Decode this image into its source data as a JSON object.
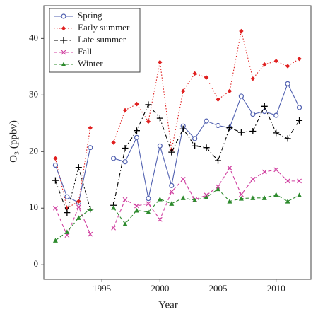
{
  "chart_data": {
    "type": "line",
    "x_label": "Year",
    "y_label": "O₃ (ppbv)",
    "x": [
      1991,
      1992,
      1993,
      1994,
      1995,
      1996,
      1997,
      1998,
      1999,
      2000,
      2001,
      2002,
      2003,
      2004,
      2005,
      2006,
      2007,
      2008,
      2009,
      2010,
      2011,
      2012
    ],
    "series": [
      {
        "name": "Spring",
        "color": "#5060b0",
        "marker": "circle",
        "linestyle": "solid",
        "values": [
          17.6,
          12,
          11,
          20.7,
          null,
          18.8,
          18.2,
          22.5,
          11.7,
          21,
          14,
          24.5,
          22.3,
          25.4,
          24.6,
          24.2,
          29.8,
          26.6,
          27.1,
          26.4,
          32,
          27.8
        ]
      },
      {
        "name": "Early summer",
        "color": "#e02020",
        "marker": "diamond",
        "linestyle": "dotted",
        "values": [
          18.8,
          10,
          11.2,
          24.2,
          null,
          21.6,
          27.3,
          28.4,
          25.3,
          35.8,
          20.3,
          30.7,
          33.8,
          33.1,
          29.2,
          30.7,
          41.3,
          32.9,
          35.4,
          36,
          35.1,
          36.4
        ]
      },
      {
        "name": "Late summer",
        "color": "#000000",
        "marker": "plus",
        "linestyle": "dashdot",
        "values": [
          14.9,
          9.2,
          17.2,
          9.8,
          null,
          10.5,
          20.6,
          23.7,
          28.3,
          25.9,
          19.9,
          24,
          21,
          20.7,
          18.4,
          24.2,
          23.4,
          23.6,
          28,
          23.3,
          22.3,
          25.5
        ]
      },
      {
        "name": "Fall",
        "color": "#d040a0",
        "marker": "x",
        "linestyle": "dashed",
        "values": [
          10,
          5.2,
          10.2,
          5.4,
          null,
          6.5,
          11.5,
          10.4,
          10.8,
          8,
          12.9,
          15.1,
          11.5,
          12.3,
          13.8,
          17.1,
          12.4,
          15.1,
          16.4,
          16.8,
          14.8,
          14.8
        ]
      },
      {
        "name": "Winter",
        "color": "#2e8b2e",
        "marker": "triangle",
        "linestyle": "dashed",
        "values": [
          4.3,
          5.8,
          8.3,
          9.8,
          null,
          10.1,
          7.2,
          9.6,
          9.3,
          11.6,
          10.8,
          11.8,
          11.4,
          11.9,
          13.4,
          11.2,
          11.7,
          11.8,
          11.8,
          12.4,
          11.2,
          12.3
        ]
      }
    ],
    "xlim": [
      1990,
      2013
    ],
    "xticks": [
      1995,
      2000,
      2005,
      2010
    ],
    "ylim": [
      -2.6,
      45.8
    ],
    "yticks": [
      0,
      10,
      20,
      30,
      40
    ],
    "grid": false,
    "legend": "upper left"
  }
}
